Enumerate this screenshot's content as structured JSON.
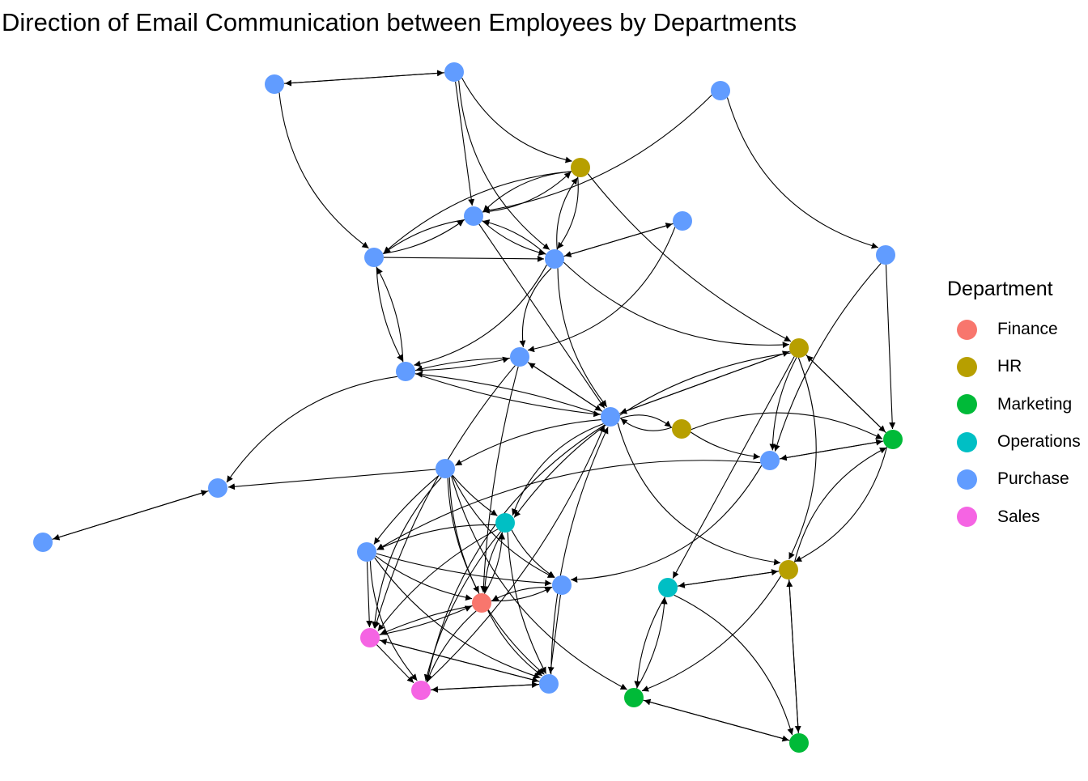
{
  "title": "Direction of Email Communication between Employees by Departments",
  "legend": {
    "title": "Department",
    "items": [
      {
        "label": "Finance",
        "color": "#F8766D"
      },
      {
        "label": "HR",
        "color": "#B79F00"
      },
      {
        "label": "Marketing",
        "color": "#00BA38"
      },
      {
        "label": "Operations",
        "color": "#00BFC4"
      },
      {
        "label": "Purchase",
        "color": "#619CFF"
      },
      {
        "label": "Sales",
        "color": "#F564E3"
      }
    ]
  },
  "network": {
    "nodes": [
      {
        "id": "p1",
        "dept": "Purchase"
      },
      {
        "id": "p2",
        "dept": "Purchase"
      },
      {
        "id": "p3",
        "dept": "Purchase"
      },
      {
        "id": "h1",
        "dept": "HR"
      },
      {
        "id": "p4",
        "dept": "Purchase"
      },
      {
        "id": "p5",
        "dept": "Purchase"
      },
      {
        "id": "p6",
        "dept": "Purchase"
      },
      {
        "id": "p7",
        "dept": "Purchase"
      },
      {
        "id": "p8",
        "dept": "Purchase"
      },
      {
        "id": "h2",
        "dept": "HR"
      },
      {
        "id": "p9",
        "dept": "Purchase"
      },
      {
        "id": "p10",
        "dept": "Purchase"
      },
      {
        "id": "p11",
        "dept": "Purchase"
      },
      {
        "id": "h3",
        "dept": "HR"
      },
      {
        "id": "m1",
        "dept": "Marketing"
      },
      {
        "id": "p12",
        "dept": "Purchase"
      },
      {
        "id": "p13",
        "dept": "Purchase"
      },
      {
        "id": "p14",
        "dept": "Purchase"
      },
      {
        "id": "p15",
        "dept": "Purchase"
      },
      {
        "id": "o1",
        "dept": "Operations"
      },
      {
        "id": "p16",
        "dept": "Purchase"
      },
      {
        "id": "h4",
        "dept": "HR"
      },
      {
        "id": "p17",
        "dept": "Purchase"
      },
      {
        "id": "o2",
        "dept": "Operations"
      },
      {
        "id": "f1",
        "dept": "Finance"
      },
      {
        "id": "s1",
        "dept": "Sales"
      },
      {
        "id": "s2",
        "dept": "Sales"
      },
      {
        "id": "p18",
        "dept": "Purchase"
      },
      {
        "id": "m2",
        "dept": "Marketing"
      },
      {
        "id": "m3",
        "dept": "Marketing"
      }
    ],
    "edges": [
      {
        "from": "p1",
        "to": "p2",
        "curv": 0
      },
      {
        "from": "p2",
        "to": "p1",
        "curv": 0
      },
      {
        "from": "p1",
        "to": "p5",
        "curv": 0.2
      },
      {
        "from": "p2",
        "to": "h1",
        "curv": 0.2
      },
      {
        "from": "p2",
        "to": "p4",
        "curv": 0
      },
      {
        "from": "p2",
        "to": "p6",
        "curv": 0.2
      },
      {
        "from": "p3",
        "to": "p4",
        "curv": -0.15
      },
      {
        "from": "p3",
        "to": "p8",
        "curv": 0.25
      },
      {
        "from": "h1",
        "to": "p4",
        "curv": 0.15
      },
      {
        "from": "p4",
        "to": "h1",
        "curv": 0.15
      },
      {
        "from": "h1",
        "to": "p5",
        "curv": 0.15
      },
      {
        "from": "h1",
        "to": "p6",
        "curv": -0.15
      },
      {
        "from": "p6",
        "to": "h1",
        "curv": -0.15
      },
      {
        "from": "h1",
        "to": "h2",
        "curv": 0.1
      },
      {
        "from": "p4",
        "to": "p5",
        "curv": 0.1
      },
      {
        "from": "p5",
        "to": "p4",
        "curv": 0.1
      },
      {
        "from": "p4",
        "to": "p6",
        "curv": 0.1
      },
      {
        "from": "p6",
        "to": "p4",
        "curv": 0.1
      },
      {
        "from": "p4",
        "to": "p11",
        "curv": 0
      },
      {
        "from": "p5",
        "to": "p6",
        "curv": 0
      },
      {
        "from": "p5",
        "to": "p9",
        "curv": 0.1
      },
      {
        "from": "p9",
        "to": "p5",
        "curv": 0.1
      },
      {
        "from": "p7",
        "to": "p6",
        "curv": 0
      },
      {
        "from": "p6",
        "to": "p7",
        "curv": 0
      },
      {
        "from": "p6",
        "to": "p9",
        "curv": -0.2
      },
      {
        "from": "p6",
        "to": "p10",
        "curv": 0.2
      },
      {
        "from": "p6",
        "to": "p11",
        "curv": 0.15
      },
      {
        "from": "p6",
        "to": "h2",
        "curv": 0.2
      },
      {
        "from": "p7",
        "to": "p10",
        "curv": -0.25
      },
      {
        "from": "p8",
        "to": "m1",
        "curv": 0
      },
      {
        "from": "p8",
        "to": "p12",
        "curv": 0.1
      },
      {
        "from": "p9",
        "to": "p10",
        "curv": 0.05
      },
      {
        "from": "p10",
        "to": "p9",
        "curv": 0.05
      },
      {
        "from": "p9",
        "to": "p11",
        "curv": 0.05
      },
      {
        "from": "p11",
        "to": "p9",
        "curv": 0.05
      },
      {
        "from": "p9",
        "to": "p14",
        "curv": 0.2
      },
      {
        "from": "p10",
        "to": "p11",
        "curv": 0
      },
      {
        "from": "p11",
        "to": "p10",
        "curv": 0
      },
      {
        "from": "p10",
        "to": "f1",
        "curv": 0.05
      },
      {
        "from": "p11",
        "to": "h2",
        "curv": 0
      },
      {
        "from": "h2",
        "to": "p11",
        "curv": 0
      },
      {
        "from": "p11",
        "to": "h3",
        "curv": -0.2
      },
      {
        "from": "h3",
        "to": "p11",
        "curv": -0.2
      },
      {
        "from": "p11",
        "to": "p11",
        "curv": 0
      },
      {
        "from": "p11",
        "to": "p13",
        "curv": 0.1
      },
      {
        "from": "p11",
        "to": "o1",
        "curv": 0.2
      },
      {
        "from": "p11",
        "to": "h4",
        "curv": 0.3
      },
      {
        "from": "p11",
        "to": "s2",
        "curv": 0.2
      },
      {
        "from": "h2",
        "to": "m1",
        "curv": 0
      },
      {
        "from": "m1",
        "to": "h2",
        "curv": 0
      },
      {
        "from": "h2",
        "to": "p12",
        "curv": 0.1
      },
      {
        "from": "h2",
        "to": "h4",
        "curv": -0.2
      },
      {
        "from": "h2",
        "to": "o2",
        "curv": 0
      },
      {
        "from": "h2",
        "to": "o1",
        "curv": 0.2
      },
      {
        "from": "h3",
        "to": "p12",
        "curv": 0.1
      },
      {
        "from": "h3",
        "to": "m1",
        "curv": -0.2
      },
      {
        "from": "m1",
        "to": "p12",
        "curv": 0
      },
      {
        "from": "p12",
        "to": "m1",
        "curv": 0
      },
      {
        "from": "m1",
        "to": "h4",
        "curv": -0.2
      },
      {
        "from": "h4",
        "to": "m1",
        "curv": -0.2
      },
      {
        "from": "p12",
        "to": "p17",
        "curv": -0.25
      },
      {
        "from": "p13",
        "to": "p14",
        "curv": 0
      },
      {
        "from": "p14",
        "to": "p15",
        "curv": 0
      },
      {
        "from": "p13",
        "to": "p16",
        "curv": 0.05
      },
      {
        "from": "p13",
        "to": "o1",
        "curv": 0.05
      },
      {
        "from": "p13",
        "to": "p17",
        "curv": 0.15
      },
      {
        "from": "p13",
        "to": "s1",
        "curv": 0.15
      },
      {
        "from": "p13",
        "to": "p18",
        "curv": 0.2
      },
      {
        "from": "p13",
        "to": "m2",
        "curv": 0.2
      },
      {
        "from": "p13",
        "to": "f1",
        "curv": 0.1
      },
      {
        "from": "o1",
        "to": "p16",
        "curv": 0.1
      },
      {
        "from": "o1",
        "to": "p17",
        "curv": 0.1
      },
      {
        "from": "o1",
        "to": "f1",
        "curv": 0.1
      },
      {
        "from": "f1",
        "to": "o1",
        "curv": 0.1
      },
      {
        "from": "o1",
        "to": "s1",
        "curv": 0.1
      },
      {
        "from": "o1",
        "to": "s2",
        "curv": 0.1
      },
      {
        "from": "o1",
        "to": "p18",
        "curv": 0.1
      },
      {
        "from": "p16",
        "to": "p17",
        "curv": 0.05
      },
      {
        "from": "p16",
        "to": "f1",
        "curv": 0.1
      },
      {
        "from": "p16",
        "to": "s1",
        "curv": 0
      },
      {
        "from": "p16",
        "to": "s2",
        "curv": 0.15
      },
      {
        "from": "p16",
        "to": "p18",
        "curv": 0.15
      },
      {
        "from": "p17",
        "to": "f1",
        "curv": 0.1
      },
      {
        "from": "f1",
        "to": "p17",
        "curv": 0.1
      },
      {
        "from": "p17",
        "to": "p18",
        "curv": 0
      },
      {
        "from": "f1",
        "to": "s1",
        "curv": 0.05
      },
      {
        "from": "s1",
        "to": "f1",
        "curv": 0.05
      },
      {
        "from": "f1",
        "to": "s2",
        "curv": 0.1
      },
      {
        "from": "f1",
        "to": "p18",
        "curv": 0.1
      },
      {
        "from": "s1",
        "to": "s2",
        "curv": 0
      },
      {
        "from": "s1",
        "to": "p18",
        "curv": 0
      },
      {
        "from": "p18",
        "to": "s1",
        "curv": 0
      },
      {
        "from": "s2",
        "to": "p18",
        "curv": 0
      },
      {
        "from": "p18",
        "to": "s2",
        "curv": 0
      },
      {
        "from": "p18",
        "to": "p11",
        "curv": -0.1
      },
      {
        "from": "o2",
        "to": "h4",
        "curv": 0
      },
      {
        "from": "h4",
        "to": "o2",
        "curv": 0
      },
      {
        "from": "o2",
        "to": "m2",
        "curv": 0.1
      },
      {
        "from": "m2",
        "to": "o2",
        "curv": 0.1
      },
      {
        "from": "o2",
        "to": "m3",
        "curv": -0.2
      },
      {
        "from": "h4",
        "to": "m3",
        "curv": 0
      },
      {
        "from": "m3",
        "to": "h4",
        "curv": 0
      },
      {
        "from": "h4",
        "to": "m2",
        "curv": -0.15
      },
      {
        "from": "m2",
        "to": "m3",
        "curv": 0
      },
      {
        "from": "m3",
        "to": "m2",
        "curv": 0
      },
      {
        "from": "p12",
        "to": "p16",
        "curv": 0.15
      },
      {
        "from": "s2",
        "to": "p11",
        "curv": 0.1
      },
      {
        "from": "p10",
        "to": "s1",
        "curv": 0.1
      },
      {
        "from": "p15",
        "to": "p14",
        "curv": 0
      }
    ]
  }
}
